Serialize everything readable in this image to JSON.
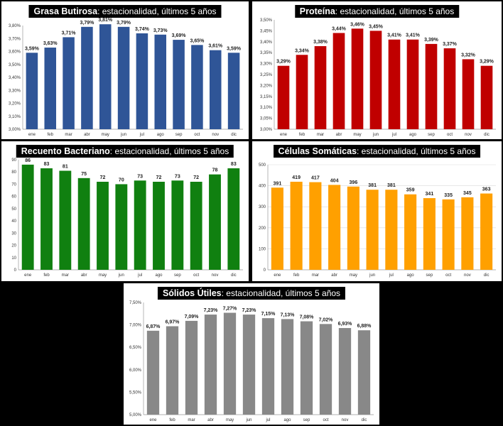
{
  "chart_data": [
    {
      "type": "bar",
      "title_bold": "Grasa Butirosa",
      "title_rest": ": estacionalidad, últimos 5 años",
      "color": "#2f5597",
      "categories": [
        "ene",
        "feb",
        "mar",
        "abr",
        "may",
        "jun",
        "jul",
        "ago",
        "sep",
        "oct",
        "nov",
        "dic"
      ],
      "values": [
        3.59,
        3.63,
        3.71,
        3.79,
        3.81,
        3.79,
        3.74,
        3.73,
        3.69,
        3.65,
        3.61,
        3.59
      ],
      "data_labels": [
        "3,59%",
        "3,63%",
        "3,71%",
        "3,79%",
        "3,81%",
        "3,79%",
        "3,74%",
        "3,73%",
        "3,69%",
        "3,65%",
        "3,61%",
        "3,59%"
      ],
      "ylim": [
        3.0,
        3.8
      ],
      "yticks": [
        "3,00%",
        "3,10%",
        "3,20%",
        "3,30%",
        "3,40%",
        "3,50%",
        "3,60%",
        "3,70%",
        "3,80%"
      ],
      "grid": false
    },
    {
      "type": "bar",
      "title_bold": "Proteína",
      "title_rest": ": estacionalidad, últimos 5 años",
      "color": "#c00000",
      "categories": [
        "ene",
        "feb",
        "mar",
        "abr",
        "may",
        "jun",
        "jul",
        "ago",
        "sep",
        "oct",
        "nov",
        "dic"
      ],
      "values": [
        3.29,
        3.34,
        3.38,
        3.44,
        3.46,
        3.45,
        3.41,
        3.41,
        3.39,
        3.37,
        3.32,
        3.29
      ],
      "data_labels": [
        "3,29%",
        "3,34%",
        "3,38%",
        "3,44%",
        "3,46%",
        "3,45%",
        "3,41%",
        "3,41%",
        "3,39%",
        "3,37%",
        "3,32%",
        "3,29%"
      ],
      "ylim": [
        3.0,
        3.5
      ],
      "yticks": [
        "3,00%",
        "3,05%",
        "3,10%",
        "3,15%",
        "3,20%",
        "3,25%",
        "3,30%",
        "3,35%",
        "3,40%",
        "3,45%",
        "3,50%"
      ],
      "grid": false
    },
    {
      "type": "bar",
      "title_bold": "Recuento Bacteriano",
      "title_rest": ": estacionalidad, últimos 5 años",
      "color": "#108010",
      "categories": [
        "ene",
        "feb",
        "mar",
        "abr",
        "may",
        "jun",
        "jul",
        "ago",
        "sep",
        "oct",
        "nov",
        "dic"
      ],
      "values": [
        86,
        83,
        81,
        75,
        72,
        70,
        73,
        72,
        73,
        72,
        78,
        83
      ],
      "data_labels": [
        "86",
        "83",
        "81",
        "75",
        "72",
        "70",
        "73",
        "72",
        "73",
        "72",
        "78",
        "83"
      ],
      "ylim": [
        0,
        90
      ],
      "yticks": [
        "0",
        "10",
        "20",
        "30",
        "40",
        "50",
        "60",
        "70",
        "80",
        "90"
      ],
      "grid": false
    },
    {
      "type": "bar",
      "title_bold": "Células Somáticas",
      "title_rest": ": estacionalidad, últimos 5 años",
      "color": "#ffa000",
      "categories": [
        "ene",
        "feb",
        "mar",
        "abr",
        "may",
        "jun",
        "jul",
        "ago",
        "sep",
        "oct",
        "nov",
        "dic"
      ],
      "values": [
        391,
        419,
        417,
        404,
        396,
        381,
        381,
        359,
        341,
        335,
        345,
        363
      ],
      "data_labels": [
        "391",
        "419",
        "417",
        "404",
        "396",
        "381",
        "381",
        "359",
        "341",
        "335",
        "345",
        "363"
      ],
      "ylim": [
        0,
        500
      ],
      "yticks": [
        "0",
        "100",
        "200",
        "300",
        "400",
        "500"
      ],
      "grid": true
    },
    {
      "type": "bar",
      "title_bold": "Sólidos Útiles",
      "title_rest": ": estacionalidad, últimos 5 años",
      "color": "#888888",
      "categories": [
        "ene",
        "feb",
        "mar",
        "abr",
        "may",
        "jun",
        "jul",
        "ago",
        "sep",
        "oct",
        "nov",
        "dic"
      ],
      "values": [
        6.87,
        6.97,
        7.09,
        7.23,
        7.27,
        7.23,
        7.15,
        7.13,
        7.08,
        7.02,
        6.93,
        6.88
      ],
      "data_labels": [
        "6,87%",
        "6,97%",
        "7,09%",
        "7,23%",
        "7,27%",
        "7,23%",
        "7,15%",
        "7,13%",
        "7,08%",
        "7,02%",
        "6,93%",
        "6,88%"
      ],
      "ylim": [
        5.0,
        7.5
      ],
      "yticks": [
        "5,00%",
        "5,50%",
        "6,00%",
        "6,50%",
        "7,00%",
        "7,50%"
      ],
      "grid": false
    }
  ]
}
